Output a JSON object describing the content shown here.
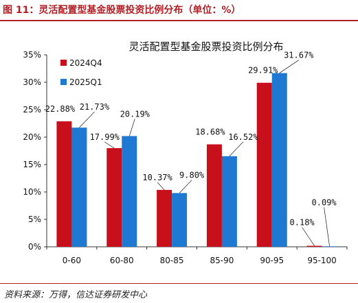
{
  "header": {
    "figure_title": "图 11：灵活配置型基金股票投资比例分布（单位：%）"
  },
  "footer": {
    "source": "资料来源：万得，信达证券研发中心"
  },
  "colors": {
    "accent": "#b21f24",
    "series_2024Q4": "#c8101c",
    "series_2025Q1": "#1f78d1"
  },
  "chart_data": {
    "type": "bar",
    "title": "灵活配置型基金股票投资比例分布",
    "xlabel": "",
    "ylabel": "",
    "categories": [
      "0-60",
      "60-80",
      "80-85",
      "85-90",
      "90-95",
      "95-100"
    ],
    "series": [
      {
        "name": "2024Q4",
        "values": [
          22.88,
          17.99,
          10.37,
          18.68,
          29.91,
          0.18
        ],
        "labels": [
          "22.88%",
          "17.99%",
          "10.37%",
          "18.68%",
          "29.91%",
          "0.18%"
        ]
      },
      {
        "name": "2025Q1",
        "values": [
          21.73,
          20.19,
          9.8,
          16.52,
          31.67,
          0.09
        ],
        "labels": [
          "21.73%",
          "20.19%",
          "9.80%",
          "16.52%",
          "31.67%",
          "0.09%"
        ]
      }
    ],
    "yticks": [
      "0%",
      "5%",
      "10%",
      "15%",
      "20%",
      "25%",
      "30%",
      "35%"
    ],
    "ylim": [
      0,
      35
    ],
    "grid": false,
    "legend_position": "top-left"
  }
}
